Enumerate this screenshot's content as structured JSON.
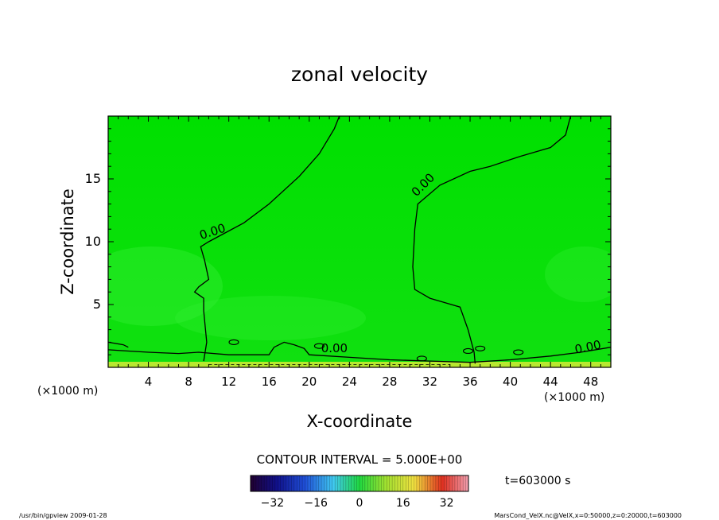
{
  "chart_data": {
    "type": "contour",
    "title": "zonal velocity",
    "xlabel": "X-coordinate",
    "ylabel": "Z-coordinate",
    "x_unit": "(×1000 m)",
    "xlim": [
      0,
      50
    ],
    "ylim": [
      0,
      20
    ],
    "x_ticks": [
      "4",
      "8",
      "12",
      "16",
      "20",
      "24",
      "28",
      "32",
      "36",
      "40",
      "44",
      "48"
    ],
    "y_ticks": [
      "5",
      "10",
      "15"
    ],
    "contour_interval_text": "CONTOUR INTERVAL = 5.000E+00",
    "contour_label": "0.00",
    "time_label": "t=603000 s",
    "colorbar": {
      "min": -40,
      "max": 40,
      "tick_labels": [
        "−32",
        "−16",
        "0",
        "16",
        "32"
      ]
    },
    "colors": {
      "field_main": "#00e000",
      "field_light": "#33ee33",
      "field_yellow": "#b8e830"
    },
    "zero_contours": [
      {
        "points": [
          [
            23.0,
            20.0
          ],
          [
            22.5,
            19.0
          ],
          [
            21.0,
            17.0
          ],
          [
            19.0,
            15.2
          ],
          [
            16.0,
            13.0
          ],
          [
            13.5,
            11.5
          ],
          [
            10.0,
            10.0
          ],
          [
            9.2,
            9.6
          ],
          [
            9.6,
            8.5
          ],
          [
            10.0,
            7.0
          ],
          [
            9.0,
            6.4
          ],
          [
            8.6,
            6.0
          ],
          [
            9.5,
            5.5
          ],
          [
            9.5,
            4.5
          ],
          [
            9.8,
            2.0
          ],
          [
            9.5,
            0.5
          ]
        ]
      },
      {
        "points": [
          [
            0.0,
            1.4
          ],
          [
            2.0,
            1.3
          ],
          [
            4.0,
            1.2
          ],
          [
            7.0,
            1.1
          ],
          [
            9.0,
            1.2
          ],
          [
            12.0,
            1.0
          ],
          [
            16.0,
            1.0
          ],
          [
            16.5,
            1.6
          ],
          [
            17.5,
            2.0
          ],
          [
            18.5,
            1.8
          ],
          [
            19.5,
            1.5
          ],
          [
            20.0,
            1.0
          ],
          [
            24.0,
            0.8
          ],
          [
            28.0,
            0.6
          ],
          [
            32.0,
            0.5
          ],
          [
            36.0,
            0.4
          ],
          [
            40.0,
            0.6
          ],
          [
            44.0,
            0.9
          ],
          [
            47.0,
            1.2
          ],
          [
            50.0,
            1.6
          ]
        ]
      },
      {
        "points": [
          [
            46.0,
            20.0
          ],
          [
            45.5,
            18.5
          ],
          [
            44.0,
            17.5
          ],
          [
            41.0,
            16.8
          ],
          [
            38.0,
            16.0
          ],
          [
            36.0,
            15.6
          ],
          [
            33.0,
            14.5
          ],
          [
            30.8,
            13.0
          ],
          [
            30.5,
            11.0
          ],
          [
            30.3,
            8.0
          ],
          [
            30.5,
            6.2
          ],
          [
            32.0,
            5.5
          ],
          [
            35.0,
            4.8
          ],
          [
            35.8,
            3.0
          ],
          [
            36.4,
            1.2
          ],
          [
            36.5,
            0.3
          ]
        ]
      },
      {
        "points": [
          [
            0.0,
            2.0
          ],
          [
            1.5,
            1.8
          ],
          [
            2.0,
            1.6
          ]
        ]
      }
    ],
    "contour_label_positions": [
      [
        10.5,
        10.5
      ],
      [
        31.6,
        14.3
      ],
      [
        22.5,
        1.2
      ],
      [
        47.8,
        1.3
      ]
    ],
    "negative_contour_dashed": {
      "points": [
        [
          10.0,
          0.22
        ],
        [
          34.0,
          0.22
        ]
      ]
    },
    "small_cells": [
      [
        12.5,
        2.0
      ],
      [
        21.0,
        1.7
      ],
      [
        31.2,
        0.7
      ],
      [
        35.8,
        1.3
      ],
      [
        37.0,
        1.5
      ],
      [
        40.8,
        1.2
      ]
    ]
  },
  "footer": {
    "left": "/usr/bin/gpview   2009-01-28",
    "right": "MarsCond_VelX.nc@VelX,x=0:50000,z=0:20000,t=603000"
  }
}
